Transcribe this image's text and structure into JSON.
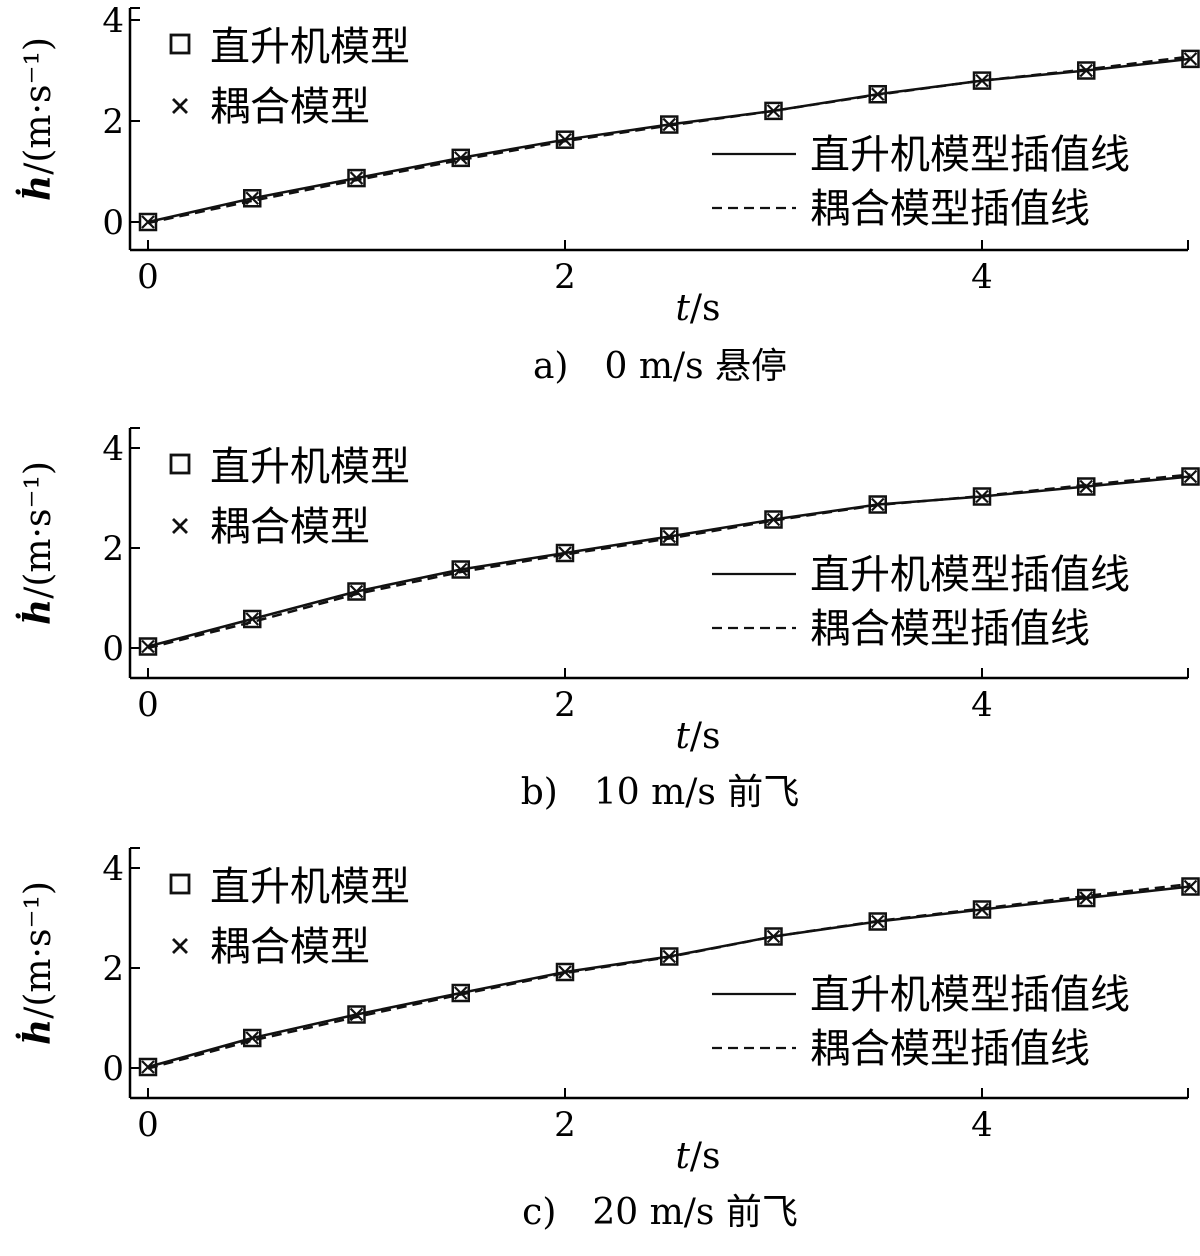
{
  "chart_data": [
    {
      "type": "line",
      "caption": "a)　0 m/s 悬停",
      "xlabel_var": "t",
      "xlabel_unit": "/s",
      "ylabel_var": "ḣ",
      "ylabel_unit": "/(m·s⁻¹)",
      "xlim": [
        0,
        5
      ],
      "ylim": [
        -0.4,
        4.2
      ],
      "xticks": [
        0,
        2,
        4
      ],
      "yticks": [
        0,
        2,
        4
      ],
      "legend_markers": [
        "直升机模型",
        "耦合模型"
      ],
      "legend_lines": [
        "直升机模型插值线",
        "耦合模型插值线"
      ],
      "x": [
        0,
        0.5,
        1.0,
        1.5,
        2.0,
        2.5,
        3.0,
        3.5,
        4.0,
        4.5,
        5.0
      ],
      "series": [
        {
          "name": "直升机模型",
          "marker": "square",
          "values": [
            0,
            0.47,
            0.87,
            1.27,
            1.63,
            1.93,
            2.2,
            2.53,
            2.8,
            3.0,
            3.23
          ]
        },
        {
          "name": "耦合模型",
          "marker": "x",
          "values": [
            0,
            0.47,
            0.87,
            1.27,
            1.63,
            1.93,
            2.2,
            2.53,
            2.8,
            3.0,
            3.23
          ]
        },
        {
          "name": "直升机模型插值线",
          "line": "solid",
          "values": [
            0,
            0.47,
            0.87,
            1.27,
            1.63,
            1.93,
            2.2,
            2.53,
            2.8,
            3.0,
            3.23
          ]
        },
        {
          "name": "耦合模型插值线",
          "line": "dashed",
          "values": [
            -0.02,
            0.42,
            0.83,
            1.23,
            1.6,
            1.91,
            2.2,
            2.52,
            2.8,
            3.02,
            3.28
          ]
        }
      ]
    },
    {
      "type": "line",
      "caption": "b)　10 m/s 前飞",
      "xlabel_var": "t",
      "xlabel_unit": "/s",
      "ylabel_var": "ḣ",
      "ylabel_unit": "/(m·s⁻¹)",
      "xlim": [
        0,
        5
      ],
      "ylim": [
        -0.4,
        4.2
      ],
      "xticks": [
        0,
        2,
        4
      ],
      "yticks": [
        0,
        2,
        4
      ],
      "legend_markers": [
        "直升机模型",
        "耦合模型"
      ],
      "legend_lines": [
        "直升机模型插值线",
        "耦合模型插值线"
      ],
      "x": [
        0,
        0.5,
        1.0,
        1.5,
        2.0,
        2.5,
        3.0,
        3.5,
        4.0,
        4.5,
        5.0
      ],
      "series": [
        {
          "name": "直升机模型",
          "marker": "square",
          "values": [
            0.03,
            0.58,
            1.13,
            1.57,
            1.9,
            2.23,
            2.57,
            2.87,
            3.03,
            3.23,
            3.43
          ]
        },
        {
          "name": "耦合模型",
          "marker": "x",
          "values": [
            0.03,
            0.58,
            1.13,
            1.57,
            1.9,
            2.23,
            2.57,
            2.87,
            3.03,
            3.23,
            3.43
          ]
        },
        {
          "name": "直升机模型插值线",
          "line": "solid",
          "values": [
            0.03,
            0.58,
            1.13,
            1.57,
            1.9,
            2.23,
            2.57,
            2.87,
            3.03,
            3.23,
            3.43
          ]
        },
        {
          "name": "耦合模型插值线",
          "line": "dashed",
          "values": [
            0.0,
            0.52,
            1.08,
            1.52,
            1.87,
            2.19,
            2.55,
            2.86,
            3.04,
            3.26,
            3.47
          ]
        }
      ]
    },
    {
      "type": "line",
      "caption": "c)　20 m/s 前飞",
      "xlabel_var": "t",
      "xlabel_unit": "/s",
      "ylabel_var": "ḣ",
      "ylabel_unit": "/(m·s⁻¹)",
      "xlim": [
        0,
        5
      ],
      "ylim": [
        -0.4,
        4.2
      ],
      "xticks": [
        0,
        2,
        4
      ],
      "yticks": [
        0,
        2,
        4
      ],
      "legend_markers": [
        "直升机模型",
        "耦合模型"
      ],
      "legend_lines": [
        "直升机模型插值线",
        "耦合模型插值线"
      ],
      "x": [
        0,
        0.5,
        1.0,
        1.5,
        2.0,
        2.5,
        3.0,
        3.5,
        4.0,
        4.5,
        5.0
      ],
      "series": [
        {
          "name": "直升机模型",
          "marker": "square",
          "values": [
            0.02,
            0.6,
            1.07,
            1.5,
            1.92,
            2.23,
            2.63,
            2.93,
            3.17,
            3.4,
            3.63
          ]
        },
        {
          "name": "耦合模型",
          "marker": "x",
          "values": [
            0.02,
            0.6,
            1.07,
            1.5,
            1.92,
            2.23,
            2.63,
            2.93,
            3.17,
            3.4,
            3.63
          ]
        },
        {
          "name": "直升机模型插值线",
          "line": "solid",
          "values": [
            0.02,
            0.6,
            1.07,
            1.5,
            1.92,
            2.23,
            2.63,
            2.93,
            3.17,
            3.4,
            3.63
          ]
        },
        {
          "name": "耦合模型插值线",
          "line": "dashed",
          "values": [
            -0.01,
            0.55,
            1.02,
            1.47,
            1.9,
            2.22,
            2.63,
            2.94,
            3.19,
            3.44,
            3.68
          ]
        }
      ]
    }
  ]
}
